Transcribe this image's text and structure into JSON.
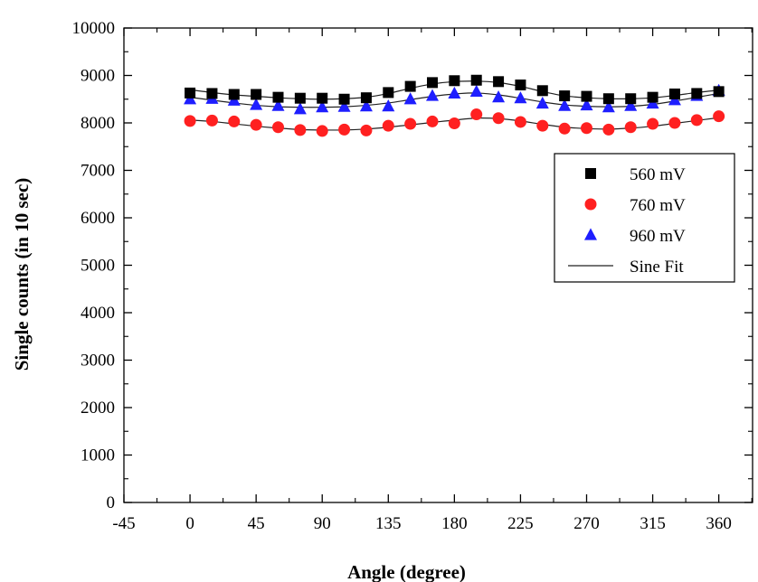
{
  "chart_data": {
    "type": "scatter",
    "xlabel": "Angle (degree)",
    "ylabel": "Single counts (in 10 sec)",
    "xlim": [
      -45,
      383
    ],
    "ylim": [
      0,
      10000
    ],
    "xticks": [
      "-45",
      "0",
      "45",
      "90",
      "135",
      "180",
      "225",
      "270",
      "315",
      "360"
    ],
    "yticks": [
      "0",
      "1000",
      "2000",
      "3000",
      "4000",
      "5000",
      "6000",
      "7000",
      "8000",
      "9000",
      "10000"
    ],
    "legend_position": "right",
    "series": [
      {
        "name": "560 mV",
        "marker": "square",
        "color": "#000000",
        "x": [
          0,
          15,
          30,
          45,
          60,
          75,
          90,
          105,
          120,
          135,
          150,
          165,
          180,
          195,
          210,
          225,
          240,
          255,
          270,
          285,
          300,
          315,
          330,
          345,
          360
        ],
        "y": [
          8630,
          8620,
          8600,
          8600,
          8540,
          8520,
          8520,
          8500,
          8530,
          8640,
          8770,
          8850,
          8890,
          8900,
          8870,
          8800,
          8680,
          8570,
          8560,
          8510,
          8510,
          8540,
          8610,
          8620,
          8660
        ]
      },
      {
        "name": "760 mV",
        "marker": "circle",
        "color": "#ff2020",
        "x": [
          0,
          15,
          30,
          45,
          60,
          75,
          90,
          105,
          120,
          135,
          150,
          165,
          180,
          195,
          210,
          225,
          240,
          255,
          270,
          285,
          300,
          315,
          330,
          345,
          360
        ],
        "y": [
          8040,
          8050,
          8030,
          7960,
          7910,
          7850,
          7830,
          7860,
          7840,
          7940,
          7980,
          8030,
          7990,
          8180,
          8100,
          8020,
          7940,
          7880,
          7890,
          7860,
          7910,
          7980,
          8000,
          8060,
          8140
        ]
      },
      {
        "name": "960 mV",
        "marker": "triangle",
        "color": "#1e1eff",
        "x": [
          0,
          15,
          30,
          45,
          60,
          75,
          90,
          105,
          120,
          135,
          150,
          165,
          180,
          195,
          210,
          225,
          240,
          255,
          270,
          285,
          300,
          315,
          330,
          345,
          360
        ],
        "y": [
          8500,
          8510,
          8470,
          8380,
          8360,
          8290,
          8330,
          8340,
          8350,
          8350,
          8500,
          8570,
          8620,
          8660,
          8540,
          8520,
          8410,
          8360,
          8370,
          8330,
          8360,
          8410,
          8480,
          8570,
          8680
        ]
      }
    ],
    "fits": [
      {
        "name": "Sine Fit",
        "color": "#222222",
        "fits_series": "560 mV",
        "x": [
          0,
          15,
          30,
          45,
          60,
          75,
          90,
          105,
          120,
          135,
          150,
          165,
          180,
          195,
          210,
          225,
          240,
          255,
          270,
          285,
          300,
          315,
          330,
          345,
          360
        ],
        "y": [
          8700,
          8640,
          8590,
          8560,
          8530,
          8510,
          8500,
          8510,
          8540,
          8620,
          8730,
          8820,
          8870,
          8880,
          8850,
          8770,
          8660,
          8570,
          8530,
          8510,
          8510,
          8530,
          8580,
          8640,
          8690
        ]
      },
      {
        "name": "Sine Fit",
        "color": "#222222",
        "fits_series": "760 mV",
        "x": [
          0,
          15,
          30,
          45,
          60,
          75,
          90,
          105,
          120,
          135,
          150,
          165,
          180,
          195,
          210,
          225,
          240,
          255,
          270,
          285,
          300,
          315,
          330,
          345,
          360
        ],
        "y": [
          8060,
          8030,
          7980,
          7930,
          7890,
          7860,
          7850,
          7850,
          7870,
          7910,
          7960,
          8010,
          8060,
          8100,
          8090,
          8040,
          7970,
          7910,
          7880,
          7870,
          7890,
          7930,
          7990,
          8050,
          8110
        ]
      },
      {
        "name": "Sine Fit",
        "color": "#222222",
        "fits_series": "960 mV",
        "x": [
          0,
          15,
          30,
          45,
          60,
          75,
          90,
          105,
          120,
          135,
          150,
          165,
          180,
          195,
          210,
          225,
          240,
          255,
          270,
          285,
          300,
          315,
          330,
          345,
          360
        ],
        "y": [
          8540,
          8480,
          8420,
          8370,
          8340,
          8330,
          8330,
          8340,
          8370,
          8420,
          8490,
          8560,
          8610,
          8630,
          8590,
          8520,
          8440,
          8380,
          8350,
          8340,
          8350,
          8390,
          8460,
          8540,
          8620
        ]
      }
    ],
    "legend": [
      {
        "label": "560 mV",
        "marker": "square",
        "color": "#000000"
      },
      {
        "label": "760 mV",
        "marker": "circle",
        "color": "#ff2020"
      },
      {
        "label": "960 mV",
        "marker": "triangle",
        "color": "#1e1eff"
      },
      {
        "label": "Sine Fit",
        "marker": "line",
        "color": "#222222"
      }
    ]
  }
}
